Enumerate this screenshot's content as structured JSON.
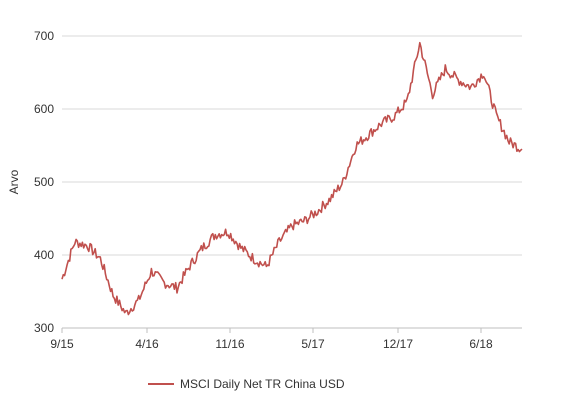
{
  "chart_data": {
    "type": "line",
    "title": "",
    "xlabel": "",
    "ylabel": "Arvo",
    "ylim": [
      300,
      700
    ],
    "yticks": [
      300,
      400,
      500,
      600,
      700
    ],
    "xticks": [
      "9/15",
      "4/16",
      "11/16",
      "5/17",
      "12/17",
      "6/18"
    ],
    "grid": true,
    "legend_position": "bottom",
    "series": [
      {
        "name": "MSCI Daily Net TR China USD",
        "color": "#c0504d",
        "x": [
          "2015-09",
          "2015-10",
          "2015-11",
          "2015-12",
          "2016-01",
          "2016-02",
          "2016-03",
          "2016-04",
          "2016-05",
          "2016-06",
          "2016-07",
          "2016-08",
          "2016-09",
          "2016-10",
          "2016-11",
          "2016-12",
          "2017-01",
          "2017-02",
          "2017-03",
          "2017-04",
          "2017-05",
          "2017-06",
          "2017-07",
          "2017-08",
          "2017-09",
          "2017-10",
          "2017-11",
          "2017-12",
          "2018-01",
          "2018-02",
          "2018-03",
          "2018-04",
          "2018-05",
          "2018-06",
          "2018-07",
          "2018-08",
          "2018-09"
        ],
        "values": [
          367,
          418,
          413,
          395,
          345,
          320,
          338,
          378,
          362,
          355,
          385,
          410,
          428,
          432,
          410,
          395,
          384,
          418,
          440,
          447,
          460,
          477,
          500,
          550,
          565,
          580,
          590,
          610,
          690,
          620,
          655,
          640,
          630,
          650,
          590,
          555,
          545
        ]
      }
    ]
  }
}
